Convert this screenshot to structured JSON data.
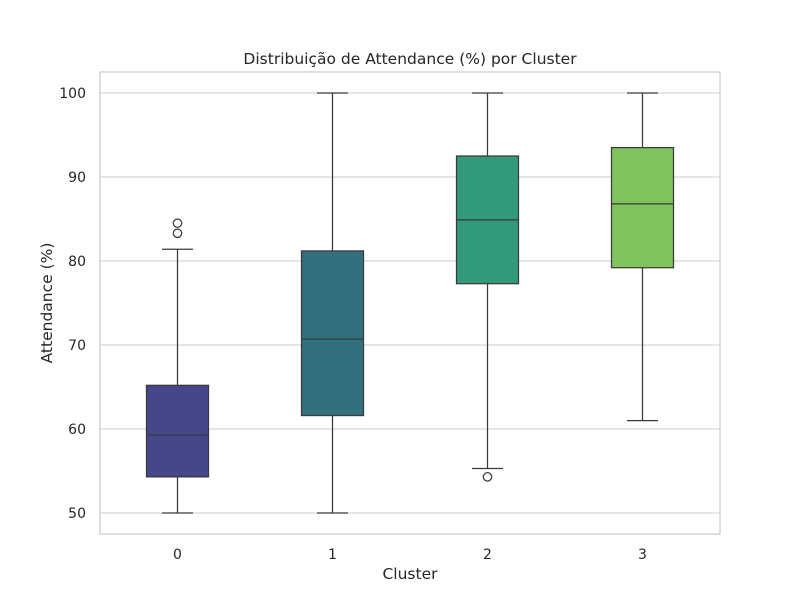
{
  "chart_data": {
    "type": "box",
    "title": "Distribuição de Attendance (%) por Cluster",
    "xlabel": "Cluster",
    "ylabel": "Attendance (%)",
    "categories": [
      "0",
      "1",
      "2",
      "3"
    ],
    "ylim": [
      47.5,
      102.5
    ],
    "yticks": [
      50,
      60,
      70,
      80,
      90,
      100
    ],
    "grid": "horizontal",
    "boxes": [
      {
        "category": "0",
        "whisker_low": 50.0,
        "q1": 54.3,
        "median": 59.3,
        "q3": 65.2,
        "whisker_high": 81.4,
        "outliers": [
          83.3,
          84.5
        ],
        "color": "#46468a"
      },
      {
        "category": "1",
        "whisker_low": 50.0,
        "q1": 61.6,
        "median": 70.7,
        "q3": 81.2,
        "whisker_high": 100.0,
        "outliers": [],
        "color": "#33707e"
      },
      {
        "category": "2",
        "whisker_low": 55.3,
        "q1": 77.3,
        "median": 84.9,
        "q3": 92.5,
        "whisker_high": 100.0,
        "outliers": [
          54.3
        ],
        "color": "#32997a"
      },
      {
        "category": "3",
        "whisker_low": 61.0,
        "q1": 79.2,
        "median": 86.8,
        "q3": 93.5,
        "whisker_high": 100.0,
        "outliers": [],
        "color": "#80c45e"
      }
    ]
  }
}
